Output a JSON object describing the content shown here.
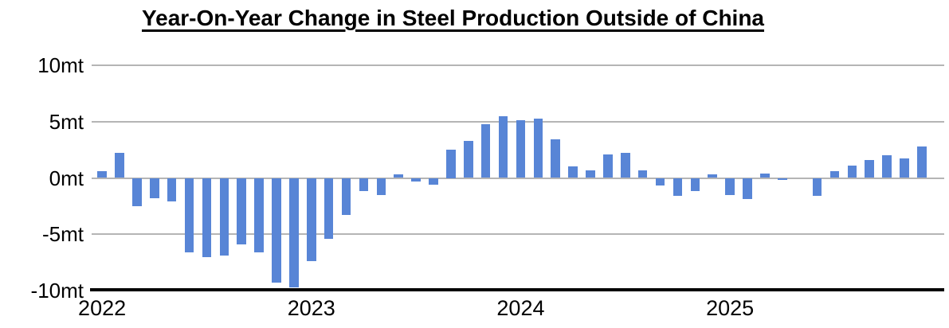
{
  "title": "Year-On-Year Change in Steel Production Outside of China",
  "y_axis": {
    "tick_labels": [
      "10mt",
      "5mt",
      "0mt",
      "-5mt",
      "-10mt"
    ],
    "tick_values": [
      10,
      5,
      0,
      -5,
      -10
    ]
  },
  "x_axis": {
    "tick_labels": [
      "2022",
      "2023",
      "2024",
      "2025"
    ],
    "tick_month_indices": [
      0,
      12,
      24,
      36
    ]
  },
  "colors": {
    "bar": "#5885d6",
    "gridline": "#b5b5b5",
    "axis": "#000000",
    "text": "#000000"
  },
  "chart_data": {
    "type": "bar",
    "title": "Year-On-Year Change in Steel Production Outside of China",
    "xlabel": "",
    "ylabel": "",
    "unit": "mt",
    "ylim": [
      -10,
      10
    ],
    "gridlines_at": [
      10,
      5,
      0,
      -5,
      -10
    ],
    "grid": "horizontal",
    "legend": "none",
    "categories": [
      "2022-01",
      "2022-02",
      "2022-03",
      "2022-04",
      "2022-05",
      "2022-06",
      "2022-07",
      "2022-08",
      "2022-09",
      "2022-10",
      "2022-11",
      "2022-12",
      "2023-01",
      "2023-02",
      "2023-03",
      "2023-04",
      "2023-05",
      "2023-06",
      "2023-07",
      "2023-08",
      "2023-09",
      "2023-10",
      "2023-11",
      "2023-12",
      "2024-01",
      "2024-02",
      "2024-03",
      "2024-04",
      "2024-05",
      "2024-06",
      "2024-07",
      "2024-08",
      "2024-09",
      "2024-10",
      "2024-11",
      "2024-12",
      "2025-01",
      "2025-02",
      "2025-03",
      "2025-04",
      "2025-05",
      "2025-06",
      "2025-07",
      "2025-08",
      "2025-09",
      "2025-10",
      "2025-11",
      "2025-12"
    ],
    "values": [
      0.6,
      2.2,
      -2.5,
      -1.8,
      -2.1,
      -6.6,
      -7.0,
      -6.9,
      -5.9,
      -6.6,
      -9.3,
      -9.7,
      -7.4,
      -5.4,
      -3.3,
      -1.2,
      -1.5,
      0.3,
      -0.3,
      -0.6,
      2.5,
      3.3,
      4.8,
      5.5,
      5.1,
      5.3,
      3.4,
      1.0,
      0.7,
      2.1,
      2.2,
      0.7,
      -0.7,
      -1.6,
      -1.2,
      0.3,
      -1.5,
      -1.9,
      0.4,
      -0.2,
      0.0,
      -1.6,
      0.6,
      1.1,
      1.6,
      2.0,
      1.7,
      2.8
    ]
  }
}
